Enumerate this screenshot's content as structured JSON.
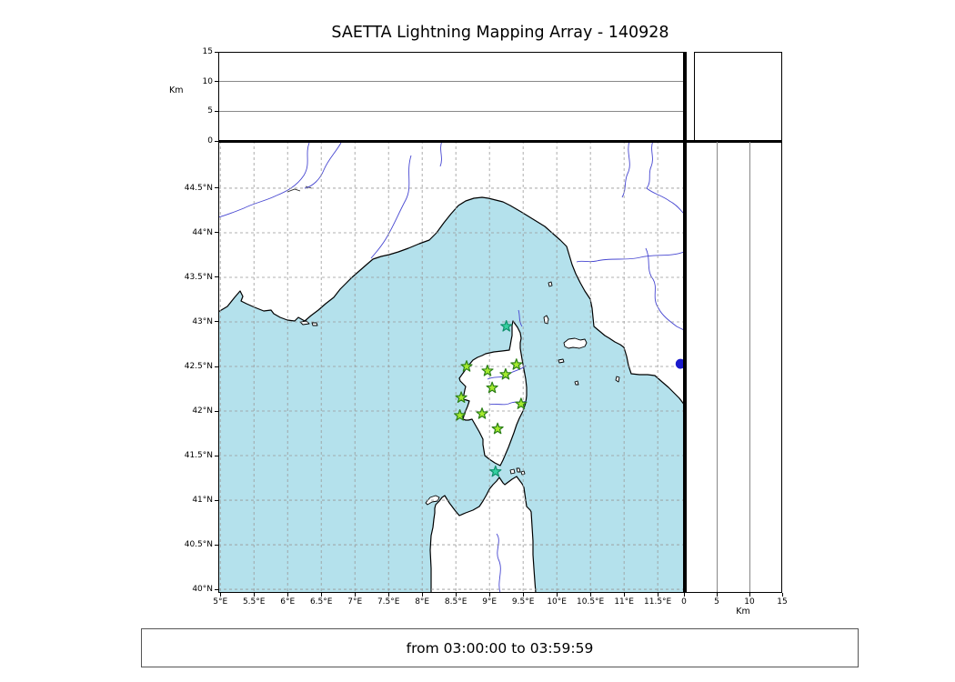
{
  "title": "SAETTA Lightning Mapping Array - 140928",
  "caption": "from 03:00:00 to 03:59:59",
  "altitude_axis": {
    "unit_label": "Km",
    "ticks": [
      {
        "v": 15,
        "label": "15"
      },
      {
        "v": 10,
        "label": "10"
      },
      {
        "v": 5,
        "label": "5"
      },
      {
        "v": 0,
        "label": "0"
      }
    ]
  },
  "right_axis": {
    "unit_label": "Km",
    "ticks": [
      {
        "v": 0,
        "label": "0"
      },
      {
        "v": 5,
        "label": "5"
      },
      {
        "v": 10,
        "label": "10"
      },
      {
        "v": 15,
        "label": "15"
      }
    ]
  },
  "map": {
    "lon_ticks": [
      {
        "v": 5,
        "label": "5°E"
      },
      {
        "v": 5.5,
        "label": "5.5°E"
      },
      {
        "v": 6,
        "label": "6°E"
      },
      {
        "v": 6.5,
        "label": "6.5°E"
      },
      {
        "v": 7,
        "label": "7°E"
      },
      {
        "v": 7.5,
        "label": "7.5°E"
      },
      {
        "v": 8,
        "label": "8°E"
      },
      {
        "v": 8.5,
        "label": "8.5°E"
      },
      {
        "v": 9,
        "label": "9°E"
      },
      {
        "v": 9.5,
        "label": "9.5°E"
      },
      {
        "v": 10,
        "label": "10°E"
      },
      {
        "v": 10.5,
        "label": "10.5°E"
      },
      {
        "v": 11,
        "label": "11°E"
      },
      {
        "v": 11.5,
        "label": "11.5°E"
      }
    ],
    "lat_ticks": [
      {
        "v": 44.5,
        "label": "44.5°N"
      },
      {
        "v": 44,
        "label": "44°N"
      },
      {
        "v": 43.5,
        "label": "43.5°N"
      },
      {
        "v": 43,
        "label": "43°N"
      },
      {
        "v": 42.5,
        "label": "42.5°N"
      },
      {
        "v": 42,
        "label": "42°N"
      },
      {
        "v": 41.5,
        "label": "41.5°N"
      },
      {
        "v": 41,
        "label": "41°N"
      },
      {
        "v": 40.5,
        "label": "40.5°N"
      },
      {
        "v": 40,
        "label": "40°N"
      }
    ],
    "colors": {
      "sea": "#b4e1ec",
      "land": "#ffffff",
      "coast": "#000000",
      "river": "#4747d1",
      "grid": "#999999",
      "station-green": "#a4ea2e",
      "station-green-edge": "#2c7f17",
      "station-teal": "#35d1a0",
      "station-teal-edge": "#0f8f6a",
      "lake": "#1a1acc"
    }
  },
  "chart_data": {
    "type": "map-scatter",
    "title": "SAETTA Lightning Mapping Array - 140928",
    "time_range": "from 03:00:00 to 03:59:59",
    "lon_range": [
      4.97,
      11.89
    ],
    "lat_range": [
      39.96,
      45.03
    ],
    "altitude_km_range": [
      0,
      15
    ],
    "lon_tick_values": [
      5,
      5.5,
      6,
      6.5,
      7,
      7.5,
      8,
      8.5,
      9,
      9.5,
      10,
      10.5,
      11,
      11.5
    ],
    "lat_tick_values": [
      40,
      40.5,
      41,
      41.5,
      42,
      42.5,
      43,
      43.5,
      44,
      44.5
    ],
    "stations": [
      {
        "lon": 9.25,
        "lat": 42.95,
        "variant": "teal"
      },
      {
        "lon": 8.66,
        "lat": 42.5,
        "variant": "green"
      },
      {
        "lon": 8.97,
        "lat": 42.45,
        "variant": "green"
      },
      {
        "lon": 9.4,
        "lat": 42.52,
        "variant": "green"
      },
      {
        "lon": 9.24,
        "lat": 42.41,
        "variant": "green"
      },
      {
        "lon": 9.04,
        "lat": 42.26,
        "variant": "green"
      },
      {
        "lon": 8.58,
        "lat": 42.15,
        "variant": "green"
      },
      {
        "lon": 9.47,
        "lat": 42.08,
        "variant": "green"
      },
      {
        "lon": 8.56,
        "lat": 41.95,
        "variant": "green"
      },
      {
        "lon": 8.89,
        "lat": 41.97,
        "variant": "green"
      },
      {
        "lon": 9.12,
        "lat": 41.8,
        "variant": "green"
      },
      {
        "lon": 9.09,
        "lat": 41.32,
        "variant": "teal"
      }
    ],
    "lake_marker": {
      "lon": 11.84,
      "lat": 42.53
    }
  }
}
